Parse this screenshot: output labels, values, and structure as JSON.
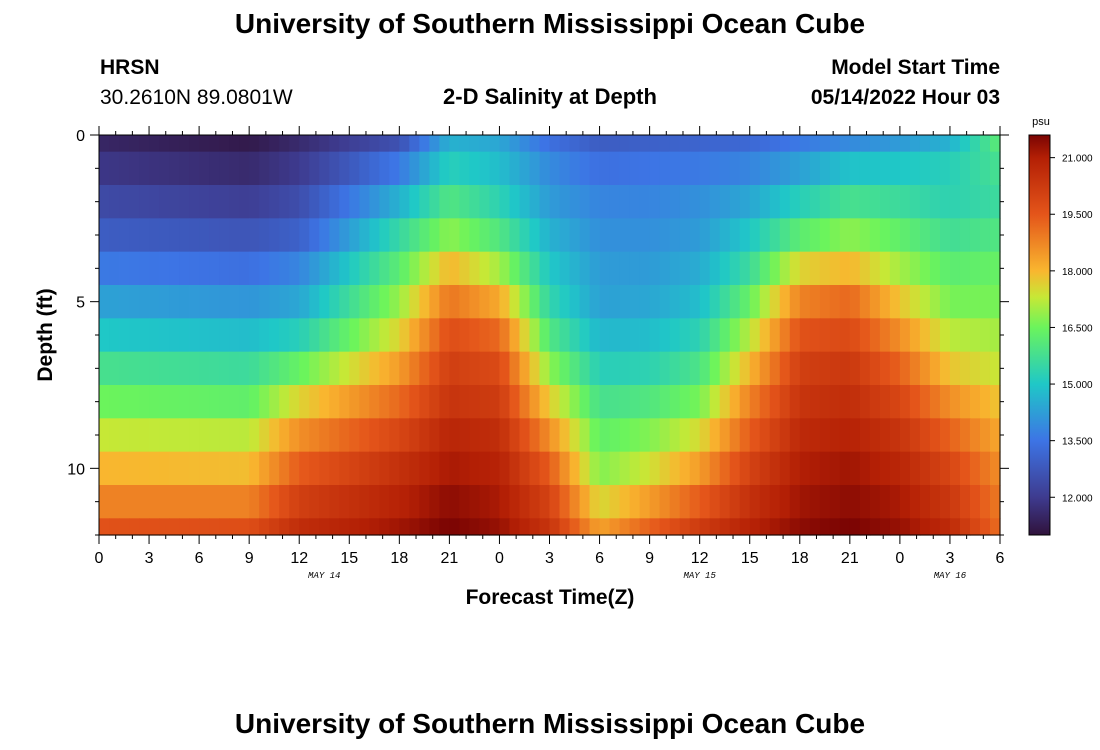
{
  "header": {
    "main_title": "University of Southern Mississippi Ocean Cube",
    "station_id": "HRSN",
    "coordinates": "30.2610N  89.0801W",
    "plot_title": "2-D Salinity at Depth",
    "model_start_label": "Model Start Time",
    "model_start_value": "05/14/2022 Hour 03"
  },
  "footer": {
    "repeated_title": "University of Southern Mississippi Ocean Cube"
  },
  "chart_data": {
    "type": "heatmap",
    "title": "2-D Salinity at Depth",
    "xlabel": "Forecast Time(Z)",
    "ylabel": "Depth (ft)",
    "x_range_hours": [
      0,
      54
    ],
    "x_major_step_hours": 3,
    "x_tick_labels": [
      "0",
      "3",
      "6",
      "9",
      "12",
      "15",
      "18",
      "21",
      "0",
      "3",
      "6",
      "9",
      "12",
      "15",
      "18",
      "21",
      "0",
      "3",
      "6"
    ],
    "date_labels": [
      {
        "text": "MAY 14",
        "hour": 13.5
      },
      {
        "text": "MAY 15",
        "hour": 36
      },
      {
        "text": "MAY 16",
        "hour": 51
      }
    ],
    "ylim": [
      0,
      12
    ],
    "y_reversed": true,
    "y_tick_values": [
      0,
      5,
      10
    ],
    "y_tick_labels": [
      "0",
      "5",
      "10"
    ],
    "depth_levels": [
      0,
      1,
      2,
      3,
      4,
      5,
      6,
      7,
      8,
      9,
      10,
      11,
      12
    ],
    "time_step_hours": 0.6,
    "colorbar": {
      "unit_label": "psu",
      "min": 11.0,
      "max": 21.6,
      "tick_values": [
        12.0,
        13.5,
        15.0,
        16.5,
        18.0,
        19.5,
        21.0
      ],
      "tick_labels": [
        "12.000",
        "13.500",
        "15.000",
        "16.500",
        "18.000",
        "19.500",
        "21.000"
      ]
    },
    "salinity_keyframes": {
      "hours": [
        0,
        9,
        12,
        18,
        21,
        24,
        27,
        30,
        33,
        36,
        39,
        42,
        45,
        48,
        51,
        54
      ],
      "depth_rows": [
        {
          "depth": 0,
          "values": [
            11.5,
            11.2,
            11.6,
            12.6,
            14.6,
            14.4,
            13.4,
            12.9,
            13.0,
            13.1,
            13.2,
            13.6,
            13.9,
            14.2,
            14.6,
            16.2
          ]
        },
        {
          "depth": 1,
          "values": [
            11.9,
            11.6,
            12.0,
            13.6,
            15.2,
            14.8,
            13.9,
            13.4,
            13.5,
            13.6,
            13.8,
            14.3,
            14.9,
            15.0,
            15.2,
            15.8
          ]
        },
        {
          "depth": 2,
          "values": [
            12.4,
            12.1,
            12.5,
            14.6,
            16.0,
            15.3,
            14.2,
            13.8,
            13.8,
            14.0,
            14.4,
            15.2,
            15.8,
            15.6,
            15.3,
            15.6
          ]
        },
        {
          "depth": 3,
          "values": [
            12.9,
            12.7,
            13.0,
            15.5,
            16.8,
            16.0,
            14.6,
            14.0,
            14.0,
            14.2,
            15.0,
            16.2,
            16.8,
            16.3,
            15.7,
            16.0
          ]
        },
        {
          "depth": 4,
          "values": [
            13.6,
            13.4,
            13.8,
            16.2,
            18.0,
            17.0,
            15.0,
            14.2,
            14.2,
            14.5,
            15.6,
            17.6,
            18.0,
            17.0,
            16.2,
            16.4
          ]
        },
        {
          "depth": 5,
          "values": [
            14.3,
            14.1,
            14.4,
            16.9,
            19.0,
            18.2,
            15.4,
            14.3,
            14.4,
            14.8,
            16.4,
            18.8,
            19.2,
            17.8,
            16.6,
            16.6
          ]
        },
        {
          "depth": 6,
          "values": [
            15.0,
            14.8,
            15.2,
            17.6,
            19.7,
            19.2,
            16.0,
            14.7,
            14.8,
            15.3,
            17.2,
            19.6,
            19.8,
            18.6,
            17.2,
            17.0
          ]
        },
        {
          "depth": 7,
          "values": [
            15.8,
            15.6,
            16.4,
            18.4,
            20.1,
            19.8,
            16.8,
            15.2,
            15.3,
            15.9,
            18.0,
            20.1,
            20.3,
            19.3,
            17.8,
            17.3
          ]
        },
        {
          "depth": 8,
          "values": [
            16.5,
            16.3,
            17.6,
            19.2,
            20.4,
            20.2,
            17.7,
            15.8,
            16.0,
            16.6,
            18.8,
            20.4,
            20.6,
            19.9,
            18.6,
            17.8
          ]
        },
        {
          "depth": 9,
          "values": [
            17.3,
            17.2,
            18.6,
            19.9,
            20.8,
            20.6,
            18.6,
            16.3,
            16.7,
            17.5,
            19.4,
            20.7,
            20.9,
            20.4,
            19.3,
            18.2
          ]
        },
        {
          "depth": 10,
          "values": [
            18.0,
            17.9,
            19.4,
            20.5,
            21.1,
            20.9,
            19.4,
            16.7,
            17.4,
            18.4,
            20.0,
            21.0,
            21.2,
            20.8,
            19.9,
            18.6
          ]
        },
        {
          "depth": 11,
          "values": [
            18.8,
            18.8,
            20.1,
            20.9,
            21.4,
            21.1,
            20.0,
            17.5,
            18.4,
            19.4,
            20.5,
            21.2,
            21.4,
            21.1,
            20.3,
            18.9
          ]
        },
        {
          "depth": 12,
          "values": [
            19.6,
            19.7,
            20.6,
            21.2,
            21.6,
            21.3,
            20.4,
            18.3,
            19.3,
            20.2,
            20.9,
            21.4,
            21.6,
            21.3,
            20.7,
            19.1
          ]
        }
      ]
    },
    "colorscale_stops": [
      {
        "value": 11.0,
        "color": "#30123b"
      },
      {
        "value": 12.0,
        "color": "#3e3b8f"
      },
      {
        "value": 13.5,
        "color": "#3d74e5"
      },
      {
        "value": 15.0,
        "color": "#1fc8c7"
      },
      {
        "value": 16.5,
        "color": "#6bf45c"
      },
      {
        "value": 17.3,
        "color": "#c6e836"
      },
      {
        "value": 18.0,
        "color": "#f9b62f"
      },
      {
        "value": 19.5,
        "color": "#e4551a"
      },
      {
        "value": 21.0,
        "color": "#b31f05"
      },
      {
        "value": 21.6,
        "color": "#7a0403"
      }
    ]
  }
}
